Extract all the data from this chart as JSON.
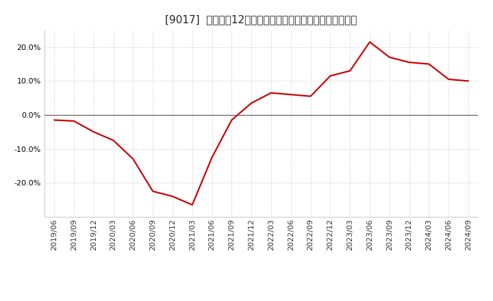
{
  "title": "[9017]  売上高の12か月移動合計の対前年同期増減率の推移",
  "x_labels": [
    "2019/06",
    "2019/09",
    "2019/12",
    "2020/03",
    "2020/06",
    "2020/09",
    "2020/12",
    "2021/03",
    "2021/06",
    "2021/09",
    "2021/12",
    "2022/03",
    "2022/06",
    "2022/09",
    "2022/12",
    "2023/03",
    "2023/06",
    "2023/09",
    "2023/12",
    "2024/03",
    "2024/06",
    "2024/09"
  ],
  "y_values": [
    -1.5,
    -1.8,
    -5.0,
    -7.5,
    -13.0,
    -22.5,
    -24.0,
    -26.5,
    -12.5,
    -1.5,
    3.5,
    6.5,
    6.0,
    5.5,
    11.5,
    13.0,
    21.5,
    17.0,
    15.5,
    15.0,
    10.5,
    10.0
  ],
  "line_color": "#cc0000",
  "background_color": "#ffffff",
  "ylim": [
    -30,
    25
  ],
  "yticks": [
    -20.0,
    -10.0,
    0.0,
    10.0,
    20.0
  ],
  "grid_color": "#bbbbbb",
  "zero_line_color": "#555555",
  "title_fontsize": 11,
  "tick_fontsize": 8,
  "line_width": 1.6
}
